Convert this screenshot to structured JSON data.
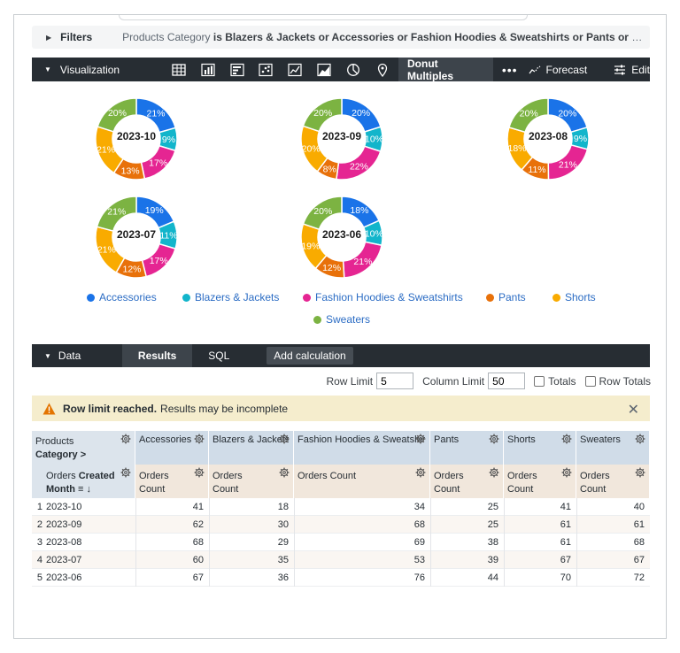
{
  "filters": {
    "title": "Filters",
    "text_prefix": "Products Category",
    "text_is": "is",
    "text_values": "Blazers & Jackets or Accessories or Fashion Hoodies & Sweatshirts or Pants or Shorts or S..."
  },
  "visualization": {
    "title": "Visualization",
    "icons": [
      "table-icon",
      "column-chart-icon",
      "bar-chart-icon",
      "scatter-icon",
      "line-chart-icon",
      "area-chart-icon",
      "pie-chart-icon",
      "map-pin-icon"
    ],
    "active_label": "Donut Multiples",
    "more_label": "•••",
    "forecast_label": "Forecast",
    "edit_label": "Edit"
  },
  "chart_data": {
    "type": "donut-multiples",
    "categories": [
      "Accessories",
      "Blazers & Jackets",
      "Fashion Hoodies & Sweatshirts",
      "Pants",
      "Shorts",
      "Sweaters"
    ],
    "colors": [
      "#1a73e8",
      "#12b5cb",
      "#e52592",
      "#e8710a",
      "#f9ab00",
      "#7cb342"
    ],
    "donuts": [
      {
        "label": "2023-10",
        "values": [
          41,
          18,
          34,
          25,
          41,
          40
        ],
        "percent_labels": [
          "21%",
          "9%",
          "17%",
          "13%",
          "21%",
          "20%"
        ]
      },
      {
        "label": "2023-09",
        "values": [
          62,
          30,
          68,
          25,
          61,
          61
        ],
        "percent_labels": [
          "20%",
          "10%",
          "22%",
          "8%",
          "20%",
          "20%"
        ]
      },
      {
        "label": "2023-08",
        "values": [
          68,
          29,
          69,
          38,
          61,
          68
        ],
        "percent_labels": [
          "20%",
          "9%",
          "21%",
          "11%",
          "18%",
          "20%"
        ]
      },
      {
        "label": "2023-07",
        "values": [
          60,
          35,
          53,
          39,
          67,
          67
        ],
        "percent_labels": [
          "19%",
          "11%",
          "17%",
          "12%",
          "21%",
          "21%"
        ]
      },
      {
        "label": "2023-06",
        "values": [
          67,
          36,
          76,
          44,
          70,
          72
        ],
        "percent_labels": [
          "18%",
          "10%",
          "21%",
          "12%",
          "19%",
          "20%"
        ]
      }
    ]
  },
  "data_panel": {
    "title": "Data",
    "tab_results": "Results",
    "tab_sql": "SQL",
    "add_calc": "Add calculation"
  },
  "limits": {
    "row_limit_label": "Row Limit",
    "row_limit_value": "5",
    "column_limit_label": "Column Limit",
    "column_limit_value": "50",
    "totals_label": "Totals",
    "row_totals_label": "Row Totals"
  },
  "warning": {
    "bold": "Row limit reached.",
    "text": "Results may be incomplete",
    "close": "✕"
  },
  "table": {
    "pivot_header": {
      "line1": "Products",
      "line2": "Category"
    },
    "pivot_arrow": ">",
    "columns": [
      "Accessories",
      "Blazers & Jackets",
      "Fashion Hoodies & Sweatshirts",
      "Pants",
      "Shorts",
      "Sweaters"
    ],
    "row_header": {
      "line1a": "Orders ",
      "line1b": "Created",
      "line2": "Month"
    },
    "measure": {
      "line1": "Orders",
      "line2": "Count",
      "wide": "Orders Count"
    },
    "rows": [
      {
        "index": "1",
        "month": "2023-10",
        "values": [
          "41",
          "18",
          "34",
          "25",
          "41",
          "40"
        ]
      },
      {
        "index": "2",
        "month": "2023-09",
        "values": [
          "62",
          "30",
          "68",
          "25",
          "61",
          "61"
        ]
      },
      {
        "index": "3",
        "month": "2023-08",
        "values": [
          "68",
          "29",
          "69",
          "38",
          "61",
          "68"
        ]
      },
      {
        "index": "4",
        "month": "2023-07",
        "values": [
          "60",
          "35",
          "53",
          "39",
          "67",
          "67"
        ]
      },
      {
        "index": "5",
        "month": "2023-06",
        "values": [
          "67",
          "36",
          "76",
          "44",
          "70",
          "72"
        ]
      }
    ]
  }
}
